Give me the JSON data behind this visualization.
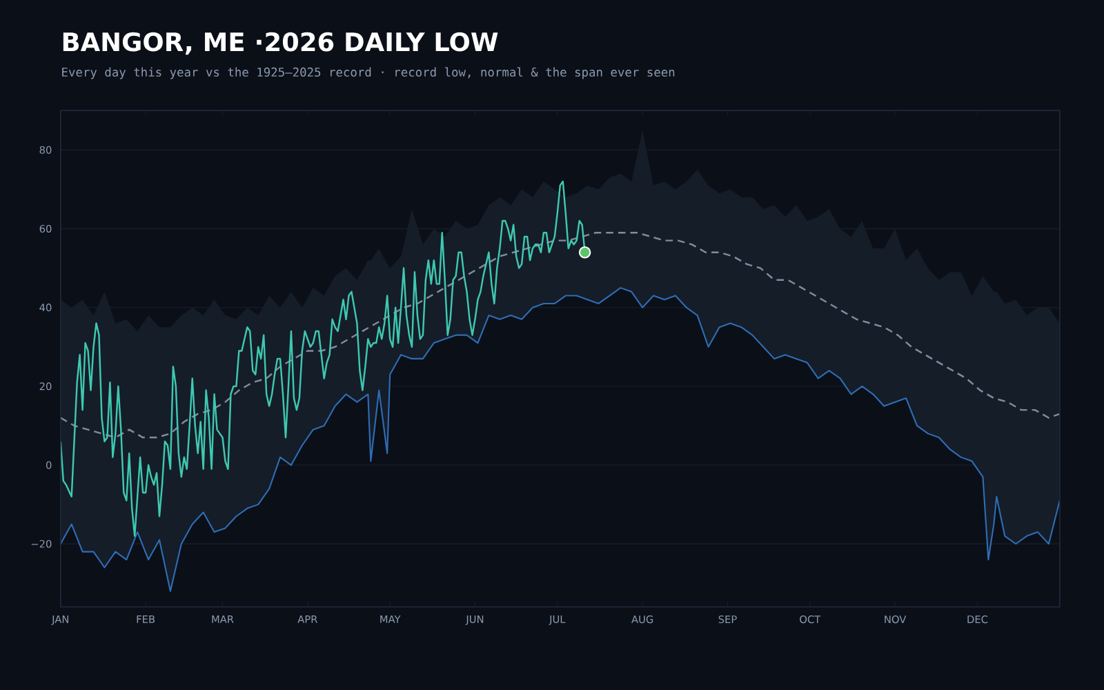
{
  "chart_data": {
    "type": "line",
    "title": "BANGOR, ME ·2026 DAILY LOW",
    "subtitle": "Every day this year vs the 1925–2025 record · record low, normal & the span ever seen",
    "xlim": [
      "2026-01-01",
      "2026-12-31"
    ],
    "ylim": [
      -36,
      90
    ],
    "xticks": [
      {
        "value": "2026-01-01",
        "label": "JAN"
      },
      {
        "value": "2026-02-01",
        "label": "FEB"
      },
      {
        "value": "2026-03-01",
        "label": "MAR"
      },
      {
        "value": "2026-04-01",
        "label": "APR"
      },
      {
        "value": "2026-05-01",
        "label": "MAY"
      },
      {
        "value": "2026-06-01",
        "label": "JUN"
      },
      {
        "value": "2026-07-01",
        "label": "JUL"
      },
      {
        "value": "2026-08-01",
        "label": "AUG"
      },
      {
        "value": "2026-09-01",
        "label": "SEP"
      },
      {
        "value": "2026-10-01",
        "label": "OCT"
      },
      {
        "value": "2026-11-01",
        "label": "NOV"
      },
      {
        "value": "2026-12-01",
        "label": "DEC"
      }
    ],
    "yticks": [
      {
        "value": -20,
        "label": "−20"
      },
      0,
      20,
      40,
      60,
      80
    ],
    "grid": "y",
    "series": [
      {
        "color": "#2f6db5",
        "x": [
          "2026-01-01",
          "2026-01-05",
          "2026-01-09",
          "2026-01-13",
          "2026-01-17",
          "2026-01-21",
          "2026-01-25",
          "2026-01-29",
          "2026-02-02",
          "2026-02-06",
          "2026-02-10",
          "2026-02-14",
          "2026-02-18",
          "2026-02-22",
          "2026-02-26",
          "2026-03-02",
          "2026-03-06",
          "2026-03-10",
          "2026-03-14",
          "2026-03-18",
          "2026-03-22",
          "2026-03-26",
          "2026-03-30",
          "2026-04-03",
          "2026-04-07",
          "2026-04-11",
          "2026-04-15",
          "2026-04-19",
          "2026-04-23",
          "2026-04-24",
          "2026-04-27",
          "2026-04-30",
          "2026-05-01",
          "2026-05-05",
          "2026-05-09",
          "2026-05-13",
          "2026-05-17",
          "2026-05-21",
          "2026-05-25",
          "2026-05-29",
          "2026-06-02",
          "2026-06-06",
          "2026-06-10",
          "2026-06-14",
          "2026-06-18",
          "2026-06-22",
          "2026-06-26",
          "2026-06-30",
          "2026-07-04",
          "2026-07-08",
          "2026-07-12",
          "2026-07-16",
          "2026-07-20",
          "2026-07-24",
          "2026-07-28",
          "2026-08-01",
          "2026-08-05",
          "2026-08-09",
          "2026-08-13",
          "2026-08-17",
          "2026-08-21",
          "2026-08-25",
          "2026-08-29",
          "2026-09-02",
          "2026-09-06",
          "2026-09-10",
          "2026-09-14",
          "2026-09-18",
          "2026-09-22",
          "2026-09-26",
          "2026-09-30",
          "2026-10-04",
          "2026-10-08",
          "2026-10-12",
          "2026-10-16",
          "2026-10-20",
          "2026-10-24",
          "2026-10-28",
          "2026-11-01",
          "2026-11-05",
          "2026-11-09",
          "2026-11-13",
          "2026-11-17",
          "2026-11-21",
          "2026-11-25",
          "2026-11-29",
          "2026-12-03",
          "2026-12-05",
          "2026-12-07",
          "2026-12-08",
          "2026-12-11",
          "2026-12-15",
          "2026-12-19",
          "2026-12-23",
          "2026-12-27",
          "2026-12-31"
        ],
        "values": [
          -20,
          -15,
          -22,
          -22,
          -26,
          -22,
          -24,
          -17,
          -24,
          -19,
          -32,
          -20,
          -15,
          -12,
          -17,
          -16,
          -13,
          -11,
          -10,
          -6,
          2,
          0,
          5,
          9,
          10,
          15,
          18,
          16,
          18,
          1,
          19,
          3,
          23,
          28,
          27,
          27,
          31,
          32,
          33,
          33,
          31,
          38,
          37,
          38,
          37,
          40,
          41,
          41,
          43,
          43,
          42,
          41,
          43,
          45,
          44,
          40,
          43,
          42,
          43,
          40,
          38,
          30,
          35,
          36,
          35,
          33,
          30,
          27,
          28,
          27,
          26,
          22,
          24,
          22,
          18,
          20,
          18,
          15,
          16,
          17,
          10,
          8,
          7,
          4,
          2,
          1,
          -3,
          -24,
          -15,
          -8,
          -18,
          -20,
          -18,
          -17,
          -20,
          -9
        ],
        "lower": [
          -20,
          -15,
          -22,
          -22,
          -26,
          -22,
          -24,
          -17,
          -24,
          -19,
          -32,
          -20,
          -15,
          -12,
          -17,
          -16,
          -13,
          -11,
          -10,
          -6,
          2,
          0,
          5,
          9,
          10,
          15,
          18,
          16,
          18,
          1,
          19,
          3,
          23,
          28,
          27,
          27,
          31,
          32,
          33,
          33,
          31,
          38,
          37,
          38,
          37,
          40,
          41,
          41,
          43,
          43,
          42,
          41,
          43,
          45,
          44,
          40,
          43,
          42,
          43,
          40,
          38,
          30,
          35,
          36,
          35,
          33,
          30,
          27,
          28,
          27,
          26,
          22,
          24,
          22,
          18,
          20,
          18,
          15,
          16,
          17,
          10,
          8,
          7,
          4,
          2,
          1,
          -3,
          -24,
          -15,
          -8,
          -18,
          -20,
          -18,
          -17,
          -20,
          -9
        ],
        "upper": [
          42,
          40,
          42,
          38,
          44,
          36,
          37,
          34,
          38,
          35,
          35,
          38,
          40,
          38,
          42,
          38,
          37,
          40,
          38,
          43,
          40,
          44,
          40,
          45,
          43,
          48,
          50,
          47,
          52,
          52,
          55,
          51,
          50,
          53,
          65,
          56,
          60,
          58,
          62,
          60,
          61,
          66,
          68,
          66,
          70,
          68,
          72,
          70,
          68,
          69,
          71,
          70,
          73,
          74,
          72,
          85,
          71,
          72,
          70,
          72,
          75,
          71,
          69,
          70,
          68,
          68,
          65,
          66,
          63,
          66,
          62,
          63,
          65,
          60,
          58,
          62,
          55,
          55,
          60,
          52,
          55,
          50,
          47,
          49,
          49,
          43,
          48,
          46,
          44,
          44,
          41,
          42,
          38,
          40,
          40,
          36
        ]
      },
      {
        "color": "#7f8da0",
        "line_style": "dashed",
        "x": [
          "2026-01-01",
          "2026-01-06",
          "2026-01-11",
          "2026-01-16",
          "2026-01-21",
          "2026-01-26",
          "2026-01-31",
          "2026-02-05",
          "2026-02-10",
          "2026-02-15",
          "2026-02-20",
          "2026-02-25",
          "2026-03-02",
          "2026-03-07",
          "2026-03-12",
          "2026-03-17",
          "2026-03-22",
          "2026-03-27",
          "2026-04-01",
          "2026-04-06",
          "2026-04-11",
          "2026-04-16",
          "2026-04-21",
          "2026-04-26",
          "2026-05-01",
          "2026-05-06",
          "2026-05-11",
          "2026-05-16",
          "2026-05-21",
          "2026-05-26",
          "2026-05-31",
          "2026-06-05",
          "2026-06-10",
          "2026-06-15",
          "2026-06-20",
          "2026-06-25",
          "2026-06-30",
          "2026-07-05",
          "2026-07-10",
          "2026-07-15",
          "2026-07-20",
          "2026-07-25",
          "2026-07-30",
          "2026-08-04",
          "2026-08-09",
          "2026-08-14",
          "2026-08-19",
          "2026-08-24",
          "2026-08-29",
          "2026-09-03",
          "2026-09-08",
          "2026-09-13",
          "2026-09-18",
          "2026-09-23",
          "2026-09-28",
          "2026-10-03",
          "2026-10-08",
          "2026-10-13",
          "2026-10-18",
          "2026-10-23",
          "2026-10-28",
          "2026-11-02",
          "2026-11-07",
          "2026-11-12",
          "2026-11-17",
          "2026-11-22",
          "2026-11-27",
          "2026-12-02",
          "2026-12-07",
          "2026-12-12",
          "2026-12-17",
          "2026-12-22",
          "2026-12-27",
          "2026-12-31"
        ],
        "values": [
          12,
          10,
          9,
          8,
          7,
          9,
          7,
          7,
          8,
          11,
          13,
          14,
          16,
          19,
          21,
          22,
          25,
          27,
          29,
          29,
          30,
          32,
          34,
          36,
          38,
          40,
          41,
          43,
          45,
          47,
          49,
          51,
          53,
          54,
          55,
          56,
          57,
          57,
          58,
          59,
          59,
          59,
          59,
          58,
          57,
          57,
          56,
          54,
          54,
          53,
          51,
          50,
          47,
          47,
          45,
          43,
          41,
          39,
          37,
          36,
          35,
          33,
          30,
          28,
          26,
          24,
          22,
          19,
          17,
          16,
          14,
          14,
          12,
          13
        ]
      },
      {
        "color": "#3ec8b0",
        "x": [
          "2026-01-01",
          "2026-01-02",
          "2026-01-03",
          "2026-01-05",
          "2026-01-07",
          "2026-01-08",
          "2026-01-09",
          "2026-01-10",
          "2026-01-11",
          "2026-01-12",
          "2026-01-13",
          "2026-01-14",
          "2026-01-15",
          "2026-01-16",
          "2026-01-17",
          "2026-01-18",
          "2026-01-19",
          "2026-01-20",
          "2026-01-21",
          "2026-01-22",
          "2026-01-23",
          "2026-01-24",
          "2026-01-25",
          "2026-01-26",
          "2026-01-27",
          "2026-01-28",
          "2026-01-29",
          "2026-01-30",
          "2026-01-31",
          "2026-02-01",
          "2026-02-02",
          "2026-02-03",
          "2026-02-04",
          "2026-02-05",
          "2026-02-06",
          "2026-02-07",
          "2026-02-08",
          "2026-02-09",
          "2026-02-10",
          "2026-02-11",
          "2026-02-12",
          "2026-02-13",
          "2026-02-14",
          "2026-02-15",
          "2026-02-16",
          "2026-02-17",
          "2026-02-18",
          "2026-02-19",
          "2026-02-20",
          "2026-02-21",
          "2026-02-22",
          "2026-02-23",
          "2026-02-24",
          "2026-02-25",
          "2026-02-26",
          "2026-02-27",
          "2026-02-28",
          "2026-03-01",
          "2026-03-02",
          "2026-03-03",
          "2026-03-04",
          "2026-03-05",
          "2026-03-06",
          "2026-03-07",
          "2026-03-08",
          "2026-03-09",
          "2026-03-10",
          "2026-03-11",
          "2026-03-12",
          "2026-03-13",
          "2026-03-14",
          "2026-03-15",
          "2026-03-16",
          "2026-03-17",
          "2026-03-18",
          "2026-03-19",
          "2026-03-20",
          "2026-03-21",
          "2026-03-22",
          "2026-03-23",
          "2026-03-24",
          "2026-03-25",
          "2026-03-26",
          "2026-03-27",
          "2026-03-28",
          "2026-03-29",
          "2026-03-30",
          "2026-03-31",
          "2026-04-01",
          "2026-04-02",
          "2026-04-03",
          "2026-04-04",
          "2026-04-05",
          "2026-04-06",
          "2026-04-07",
          "2026-04-08",
          "2026-04-09",
          "2026-04-10",
          "2026-04-11",
          "2026-04-12",
          "2026-04-13",
          "2026-04-14",
          "2026-04-15",
          "2026-04-16",
          "2026-04-17",
          "2026-04-18",
          "2026-04-19",
          "2026-04-20",
          "2026-04-21",
          "2026-04-22",
          "2026-04-23",
          "2026-04-24",
          "2026-04-25",
          "2026-04-26",
          "2026-04-27",
          "2026-04-28",
          "2026-04-29",
          "2026-04-30",
          "2026-05-01",
          "2026-05-02",
          "2026-05-03",
          "2026-05-04",
          "2026-05-05",
          "2026-05-06",
          "2026-05-07",
          "2026-05-08",
          "2026-05-09",
          "2026-05-10",
          "2026-05-11",
          "2026-05-12",
          "2026-05-13",
          "2026-05-14",
          "2026-05-15",
          "2026-05-16",
          "2026-05-17",
          "2026-05-18",
          "2026-05-19",
          "2026-05-20",
          "2026-05-21",
          "2026-05-22",
          "2026-05-23",
          "2026-05-24",
          "2026-05-25",
          "2026-05-26",
          "2026-05-27",
          "2026-05-28",
          "2026-05-29",
          "2026-05-30",
          "2026-05-31",
          "2026-06-01",
          "2026-06-02",
          "2026-06-03",
          "2026-06-04",
          "2026-06-05",
          "2026-06-06",
          "2026-06-07",
          "2026-06-08",
          "2026-06-09",
          "2026-06-10",
          "2026-06-11",
          "2026-06-12",
          "2026-06-13",
          "2026-06-14",
          "2026-06-15",
          "2026-06-16",
          "2026-06-17",
          "2026-06-18",
          "2026-06-19",
          "2026-06-20",
          "2026-06-21",
          "2026-06-22",
          "2026-06-23",
          "2026-06-24",
          "2026-06-25",
          "2026-06-26",
          "2026-06-27",
          "2026-06-28",
          "2026-06-29",
          "2026-06-30",
          "2026-07-01",
          "2026-07-02",
          "2026-07-03",
          "2026-07-04",
          "2026-07-05",
          "2026-07-06",
          "2026-07-07",
          "2026-07-08",
          "2026-07-09",
          "2026-07-10",
          "2026-07-11"
        ],
        "values": [
          6,
          -4,
          -5,
          -8,
          21,
          28,
          14,
          31,
          29,
          19,
          30,
          36,
          33,
          12,
          6,
          7,
          21,
          2,
          8,
          20,
          9,
          -7,
          -9,
          3,
          -11,
          -18,
          -8,
          2,
          -7,
          -7,
          0,
          -3,
          -5,
          -2,
          -13,
          -5,
          6,
          5,
          -1,
          25,
          20,
          3,
          -3,
          2,
          -1,
          10,
          22,
          10,
          3,
          11,
          -1,
          19,
          12,
          -1,
          18,
          9,
          8,
          7,
          1,
          -1,
          18,
          20,
          20,
          29,
          29,
          32,
          35,
          34,
          24,
          23,
          30,
          27,
          33,
          18,
          15,
          18,
          23,
          27,
          27,
          18,
          7,
          20,
          34,
          17,
          14,
          17,
          29,
          34,
          32,
          30,
          31,
          34,
          34,
          28,
          22,
          26,
          28,
          37,
          35,
          34,
          38,
          42,
          37,
          43,
          44,
          40,
          36,
          24,
          19,
          25,
          32,
          30,
          31,
          31,
          35,
          32,
          36,
          43,
          32,
          30,
          40,
          31,
          40,
          50,
          38,
          33,
          30,
          49,
          38,
          32,
          33,
          47,
          52,
          46,
          52,
          46,
          46,
          59,
          47,
          33,
          37,
          47,
          48,
          54,
          54,
          48,
          44,
          37,
          33,
          37,
          42,
          44,
          48,
          51,
          54,
          46,
          41,
          50,
          55,
          62,
          62,
          60,
          57,
          61,
          53,
          50,
          51,
          58,
          58,
          52,
          55,
          56,
          56,
          54,
          59,
          59,
          54,
          56,
          58,
          64,
          71,
          72,
          64,
          55,
          57,
          56,
          57,
          62,
          61,
          54
        ]
      },
      {
        "type": "scatter",
        "color": "#5ec46a",
        "marker": "circle",
        "x": [
          "2026-07-11"
        ],
        "values": [
          54
        ]
      }
    ]
  }
}
